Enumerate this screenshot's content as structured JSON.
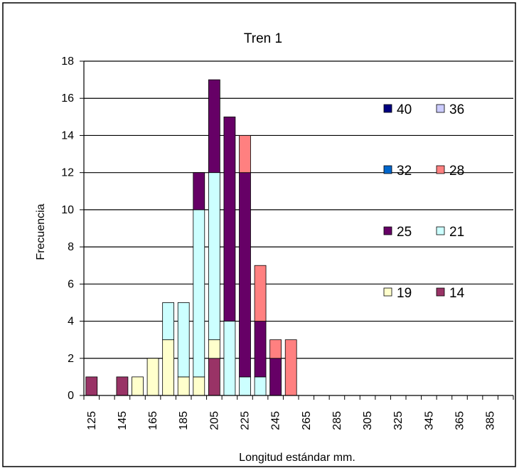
{
  "chart_data": {
    "type": "bar",
    "stacked": true,
    "title": "Tren 1",
    "xlabel": "Longitud estándar mm.",
    "ylabel": "Frecuencia",
    "ylim": [
      0,
      18
    ],
    "yticks": [
      0,
      2,
      4,
      6,
      8,
      10,
      12,
      14,
      16,
      18
    ],
    "grid": true,
    "legend_position": "right",
    "categories": [
      "125",
      "135",
      "145",
      "155",
      "165",
      "175",
      "185",
      "195",
      "205",
      "215",
      "225",
      "235",
      "245",
      "255",
      "265",
      "275",
      "285",
      "295",
      "305",
      "315",
      "325",
      "335",
      "345",
      "355",
      "365",
      "375",
      "385",
      "395"
    ],
    "tick_labels": [
      "125",
      "",
      "145",
      "",
      "165",
      "",
      "185",
      "",
      "205",
      "",
      "225",
      "",
      "245",
      "",
      "265",
      "",
      "285",
      "",
      "305",
      "",
      "325",
      "",
      "345",
      "",
      "365",
      "",
      "385",
      ""
    ],
    "series": [
      {
        "name": "14",
        "color": "#993366",
        "values": [
          1,
          0,
          1,
          0,
          0,
          0,
          0,
          0,
          2,
          0,
          0,
          0,
          0,
          0,
          0,
          0,
          0,
          0,
          0,
          0,
          0,
          0,
          0,
          0,
          0,
          0,
          0,
          0
        ]
      },
      {
        "name": "19",
        "color": "#FFFFCC",
        "values": [
          0,
          0,
          0,
          1,
          2,
          3,
          1,
          1,
          1,
          0,
          0,
          0,
          0,
          0,
          0,
          0,
          0,
          0,
          0,
          0,
          0,
          0,
          0,
          0,
          0,
          0,
          0,
          0
        ]
      },
      {
        "name": "21",
        "color": "#CCFFFF",
        "values": [
          0,
          0,
          0,
          0,
          0,
          2,
          4,
          9,
          9,
          4,
          1,
          1,
          0,
          0,
          0,
          0,
          0,
          0,
          0,
          0,
          0,
          0,
          0,
          0,
          0,
          0,
          0,
          0
        ]
      },
      {
        "name": "25",
        "color": "#660066",
        "values": [
          0,
          0,
          0,
          0,
          0,
          0,
          0,
          2,
          5,
          11,
          11,
          3,
          2,
          0,
          0,
          0,
          0,
          0,
          0,
          0,
          0,
          0,
          0,
          0,
          0,
          0,
          0,
          0
        ]
      },
      {
        "name": "28",
        "color": "#FF8080",
        "values": [
          0,
          0,
          0,
          0,
          0,
          0,
          0,
          0,
          0,
          0,
          2,
          3,
          1,
          3,
          0,
          0,
          0,
          0,
          0,
          0,
          0,
          0,
          0,
          0,
          0,
          0,
          0,
          0
        ]
      },
      {
        "name": "32",
        "color": "#0066CC",
        "values": [
          0,
          0,
          0,
          0,
          0,
          0,
          0,
          0,
          0,
          0,
          0,
          0,
          0,
          0,
          0,
          0,
          0,
          0,
          0,
          0,
          0,
          0,
          0,
          0,
          0,
          0,
          0,
          0
        ]
      },
      {
        "name": "36",
        "color": "#CCCCFF",
        "values": [
          0,
          0,
          0,
          0,
          0,
          0,
          0,
          0,
          0,
          0,
          0,
          0,
          0,
          0,
          0,
          0,
          0,
          0,
          0,
          0,
          0,
          0,
          0,
          0,
          0,
          0,
          0,
          0
        ]
      },
      {
        "name": "40",
        "color": "#000080",
        "values": [
          0,
          0,
          0,
          0,
          0,
          0,
          0,
          0,
          0,
          0,
          0,
          0,
          0,
          0,
          0,
          0,
          0,
          0,
          0,
          0,
          0,
          0,
          0,
          0,
          0,
          0,
          0,
          0
        ]
      }
    ],
    "legend_rows": [
      [
        "40",
        "36"
      ],
      [
        "32",
        "28"
      ],
      [
        "25",
        "21"
      ],
      [
        "19",
        "14"
      ]
    ]
  }
}
